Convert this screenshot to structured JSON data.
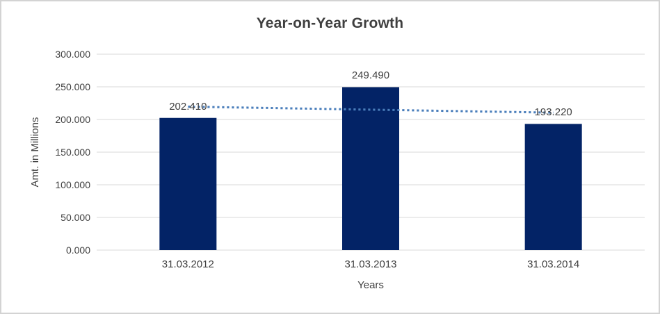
{
  "chart_data": {
    "type": "bar",
    "title": "Year-on-Year Growth",
    "categories": [
      "31.03.2012",
      "31.03.2013",
      "31.03.2014"
    ],
    "values": [
      202.41,
      249.49,
      193.22
    ],
    "data_labels": [
      "202.410",
      "249.490",
      "193.220"
    ],
    "xlabel": "Years",
    "ylabel": "Amt. in Millions",
    "ylim": [
      0,
      300
    ],
    "ytick_step": 50,
    "ytick_labels": [
      "0.000",
      "50.000",
      "100.000",
      "150.000",
      "200.000",
      "250.000",
      "300.000"
    ],
    "grid": true,
    "legend": "none",
    "bar_color": "#032366",
    "grid_color": "#d9d9d9",
    "text_color": "#404040",
    "trendline": {
      "type": "linear",
      "style": "dotted",
      "color": "#4a7ebb",
      "endpoint_values": [
        219.635,
        210.445
      ]
    }
  }
}
